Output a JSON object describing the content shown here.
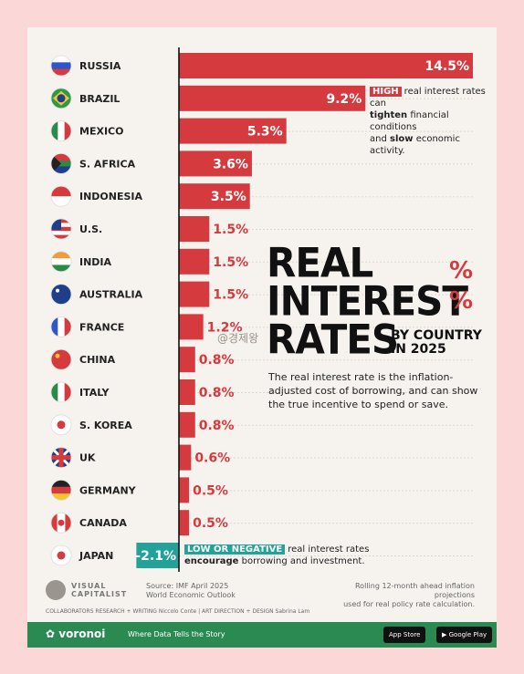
{
  "chart_data": {
    "type": "bar",
    "orientation": "horizontal",
    "categories": [
      "RUSSIA",
      "BRAZIL",
      "MEXICO",
      "S. AFRICA",
      "INDONESIA",
      "U.S.",
      "INDIA",
      "AUSTRALIA",
      "FRANCE",
      "CHINA",
      "ITALY",
      "S. KOREA",
      "UK",
      "GERMANY",
      "CANADA",
      "JAPAN"
    ],
    "values": [
      14.5,
      9.2,
      5.3,
      3.6,
      3.5,
      1.5,
      1.5,
      1.5,
      1.2,
      0.8,
      0.8,
      0.8,
      0.6,
      0.5,
      0.5,
      -2.1
    ],
    "value_labels": [
      "14.5%",
      "9.2%",
      "5.3%",
      "3.6%",
      "3.5%",
      "1.5%",
      "1.5%",
      "1.5%",
      "1.2%",
      "0.8%",
      "0.8%",
      "0.8%",
      "0.6%",
      "0.5%",
      "0.5%",
      "-2.1%"
    ],
    "flags": [
      "russia-flag-icon",
      "brazil-flag-icon",
      "mexico-flag-icon",
      "south-africa-flag-icon",
      "indonesia-flag-icon",
      "us-flag-icon",
      "india-flag-icon",
      "australia-flag-icon",
      "france-flag-icon",
      "china-flag-icon",
      "italy-flag-icon",
      "south-korea-flag-icon",
      "uk-flag-icon",
      "germany-flag-icon",
      "canada-flag-icon",
      "japan-flag-icon"
    ],
    "xlim": [
      -2.1,
      14.5
    ],
    "colors": {
      "positive": "#d53a3f",
      "negative": "#23a29a"
    }
  },
  "title": {
    "line1": "REAL",
    "line2": "INTEREST",
    "line3": "RATES",
    "pct": "%",
    "subtitle1": "BY COUNTRY",
    "subtitle2": "IN 2025"
  },
  "description": "The real interest rate is the inflation-adjusted cost of borrowing, and can show the true incentive to spend or save.",
  "annotation_high": {
    "tag": "HIGH",
    "text1": "real interest rates can",
    "bold1": "tighten",
    "text2": "financial conditions",
    "text3": "and",
    "bold2": "slow",
    "text4": "economic activity."
  },
  "annotation_low": {
    "tag": "LOW OR NEGATIVE",
    "text1": "real interest rates",
    "bold1": "encourage",
    "text2": "borrowing and investment."
  },
  "watermark": "@경제왕",
  "footer": {
    "brand": "VISUAL CAPITALIST",
    "source1": "Source: IMF April 2025",
    "source2": "World Economic Outlook",
    "note1": "Rolling 12-month ahead inflation projections",
    "note2": "used for real policy rate calculation.",
    "collaborators": "COLLABORATORS  RESEARCH + WRITING Niccolo Conte  |  ART DIRECTION + DESIGN Sabrina Lam",
    "voronoi": "voronoi",
    "tagline": "Where Data Tells the Story",
    "appstore": "App Store",
    "googleplay": "Google Play"
  }
}
